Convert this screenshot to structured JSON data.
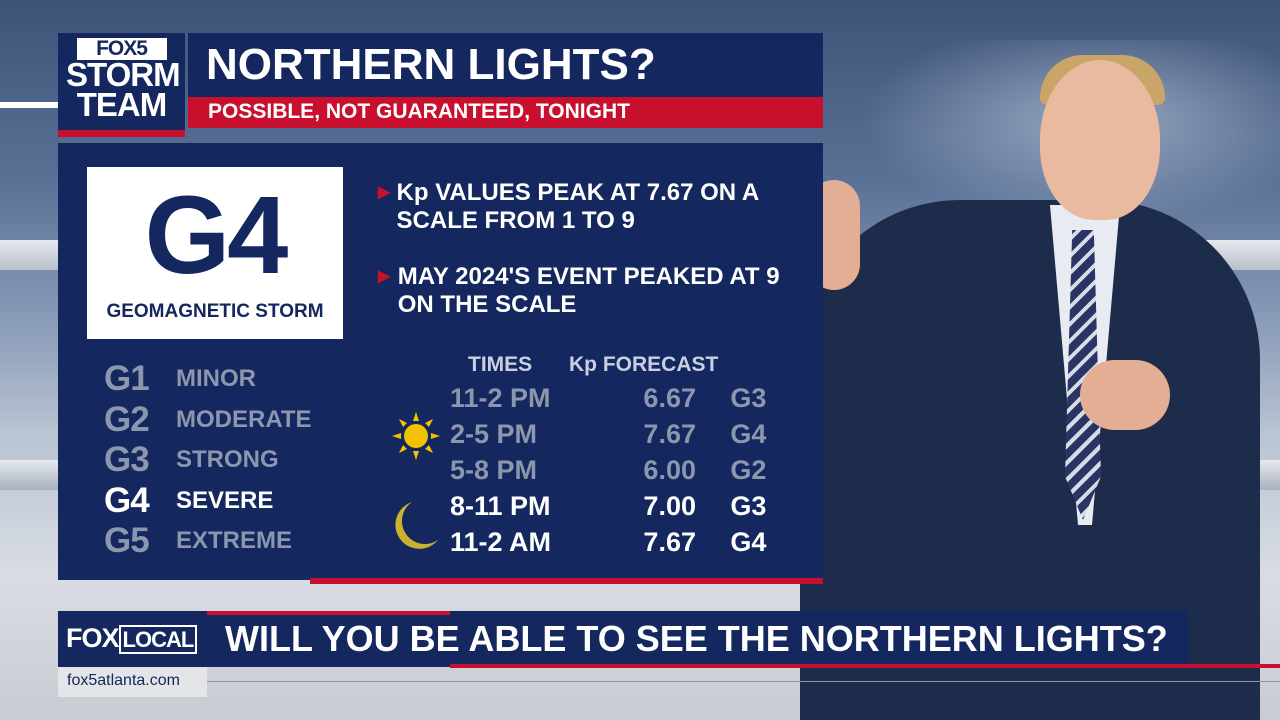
{
  "colors": {
    "navy": "#14275e",
    "red": "#c8102e",
    "white": "#ffffff",
    "dim": "#8c97ad",
    "sun": "#f2c200",
    "moon": "#c9b32e"
  },
  "logo": {
    "fox5": "FOX5",
    "line1": "STORM",
    "line2": "TEAM"
  },
  "header": {
    "title": "NORTHERN LIGHTS?",
    "subtitle": "POSSIBLE, NOT GUARANTEED, TONIGHT"
  },
  "storm_card": {
    "level": "G4",
    "label": "GEOMAGNETIC STORM"
  },
  "scale": [
    {
      "code": "G1",
      "name": "MINOR",
      "highlighted": false
    },
    {
      "code": "G2",
      "name": "MODERATE",
      "highlighted": false
    },
    {
      "code": "G3",
      "name": "STRONG",
      "highlighted": false
    },
    {
      "code": "G4",
      "name": "SEVERE",
      "highlighted": true
    },
    {
      "code": "G5",
      "name": "EXTREME",
      "highlighted": false
    }
  ],
  "bullets": [
    "Kp VALUES PEAK AT 7.67 ON A SCALE FROM 1 TO 9",
    "MAY 2024'S EVENT PEAKED AT 9 ON THE SCALE"
  ],
  "forecast": {
    "headers": {
      "times": "TIMES",
      "kp": "Kp FORECAST"
    },
    "rows": [
      {
        "time": "11-2 PM",
        "kp": "6.67",
        "g": "G3",
        "icon": "",
        "highlighted": false
      },
      {
        "time": "2-5 PM",
        "kp": "7.67",
        "g": "G4",
        "icon": "sun-icon",
        "highlighted": false
      },
      {
        "time": "5-8 PM",
        "kp": "6.00",
        "g": "G2",
        "icon": "",
        "highlighted": false
      },
      {
        "time": "8-11 PM",
        "kp": "7.00",
        "g": "G3",
        "icon": "moon-icon",
        "highlighted": true
      },
      {
        "time": "11-2 AM",
        "kp": "7.67",
        "g": "G4",
        "icon": "",
        "highlighted": true
      }
    ]
  },
  "lower_third": {
    "brand": "FOX",
    "brand_local": "LOCAL",
    "headline": "WILL YOU BE ABLE TO SEE THE NORTHERN LIGHTS?",
    "url": "fox5atlanta.com"
  }
}
